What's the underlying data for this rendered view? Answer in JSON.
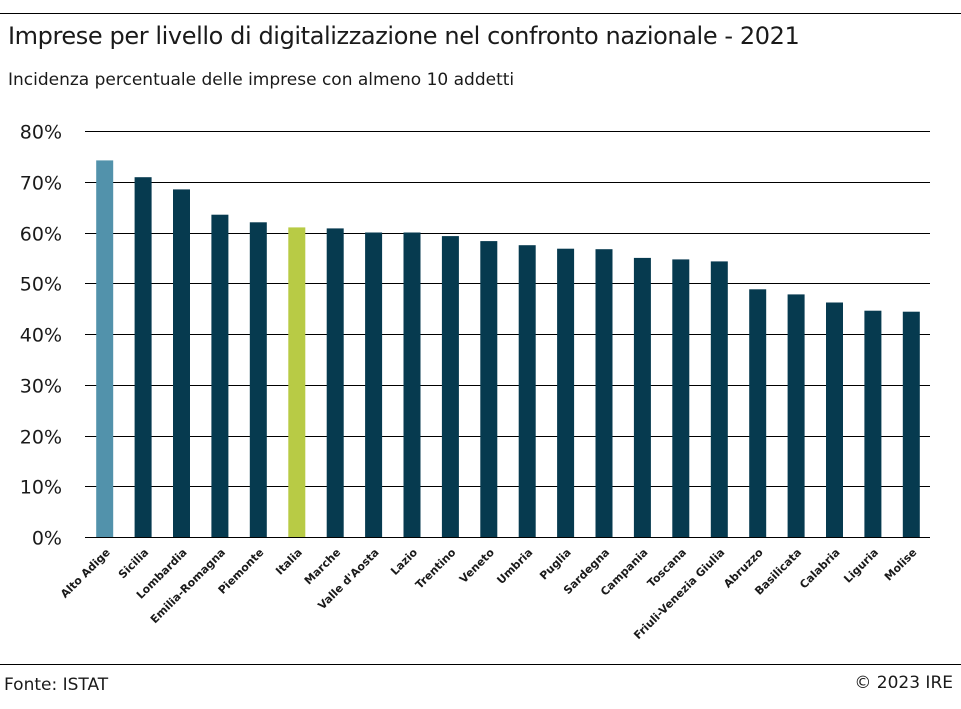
{
  "header": {
    "title": "Imprese per livello di digitalizzazione nel confronto nazionale - 2021",
    "subtitle": "Incidenza percentuale delle imprese con almeno 10 addetti"
  },
  "footer": {
    "source": "Fonte: ISTAT",
    "copyright": "© 2023 IRE"
  },
  "colors": {
    "default_bar": "#063a4f",
    "highlight_region": "#5292ab",
    "highlight_national": "#b8cb45",
    "gridline": "#000000",
    "axis_text": "#1a1a1a"
  },
  "chart_data": {
    "type": "bar",
    "title": "Imprese per livello di digitalizzazione nel confronto nazionale - 2021",
    "subtitle": "Incidenza percentuale delle imprese con almeno 10 addetti",
    "xlabel": "",
    "ylabel": "",
    "ylim": [
      0,
      80
    ],
    "yticks": [
      0,
      10,
      20,
      30,
      40,
      50,
      60,
      70,
      80
    ],
    "ytick_labels": [
      "0%",
      "10%",
      "20%",
      "30%",
      "40%",
      "50%",
      "60%",
      "70%",
      "80%"
    ],
    "grid": true,
    "legend": "none",
    "categories": [
      "Alto Adige",
      "Sicilia",
      "Lombardia",
      "Emilia-Romagna",
      "Piemonte",
      "Italia",
      "Marche",
      "Valle d'Aosta",
      "Lazio",
      "Trentino",
      "Veneto",
      "Umbria",
      "Puglia",
      "Sardegna",
      "Campania",
      "Toscana",
      "Friuli-Venezia Giulia",
      "Abruzzo",
      "Basilicata",
      "Calabria",
      "Liguria",
      "Molise"
    ],
    "values": [
      74.2,
      70.9,
      68.5,
      63.5,
      62.0,
      61.0,
      60.8,
      60.0,
      60.0,
      59.3,
      58.3,
      57.5,
      56.8,
      56.7,
      55.0,
      54.7,
      54.3,
      48.8,
      47.8,
      46.2,
      44.6,
      44.4
    ],
    "bar_colors": [
      "#5292ab",
      "#063a4f",
      "#063a4f",
      "#063a4f",
      "#063a4f",
      "#b8cb45",
      "#063a4f",
      "#063a4f",
      "#063a4f",
      "#063a4f",
      "#063a4f",
      "#063a4f",
      "#063a4f",
      "#063a4f",
      "#063a4f",
      "#063a4f",
      "#063a4f",
      "#063a4f",
      "#063a4f",
      "#063a4f",
      "#063a4f",
      "#063a4f"
    ]
  }
}
